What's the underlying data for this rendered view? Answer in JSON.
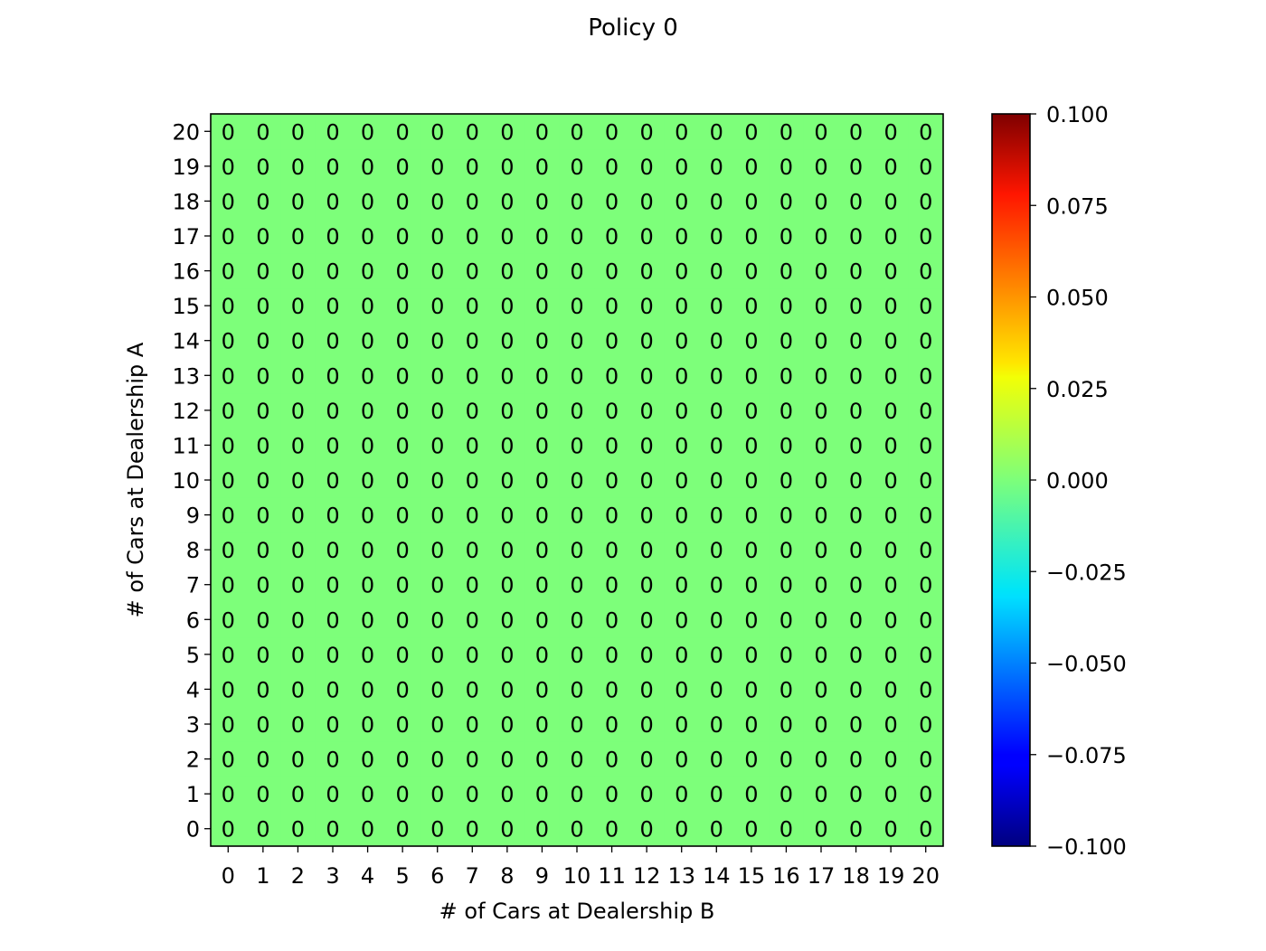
{
  "chart_data": {
    "type": "heatmap",
    "title": "Policy 0",
    "xlabel": "# of Cars at Dealership B",
    "ylabel": "# of Cars at Dealership A",
    "x_ticks": [
      0,
      1,
      2,
      3,
      4,
      5,
      6,
      7,
      8,
      9,
      10,
      11,
      12,
      13,
      14,
      15,
      16,
      17,
      18,
      19,
      20
    ],
    "y_ticks": [
      0,
      1,
      2,
      3,
      4,
      5,
      6,
      7,
      8,
      9,
      10,
      11,
      12,
      13,
      14,
      15,
      16,
      17,
      18,
      19,
      20
    ],
    "cell_values_description": "All 21x21 cells have value 0",
    "fill_value": 0,
    "rows": 21,
    "cols": 21,
    "colormap": "jet",
    "colorbar": {
      "min": -0.1,
      "max": 0.1,
      "ticks": [
        "0.100",
        "0.075",
        "0.050",
        "0.025",
        "0.000",
        "−0.025",
        "−0.050",
        "−0.075",
        "−0.100"
      ],
      "tick_values": [
        0.1,
        0.075,
        0.05,
        0.025,
        0.0,
        -0.025,
        -0.05,
        -0.075,
        -0.1
      ]
    },
    "cell_color": "#7dff7a",
    "grid": false
  }
}
